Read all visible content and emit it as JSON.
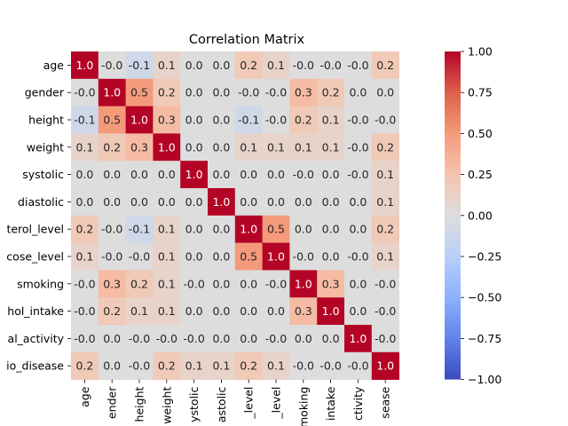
{
  "chart_data": {
    "type": "heatmap",
    "title": "Correlation Matrix",
    "xlabel": "",
    "ylabel": "",
    "row_labels": [
      "age",
      "gender",
      "height",
      "weight",
      "systolic",
      "diastolic",
      "terol_level",
      "cose_level",
      "smoking",
      "hol_intake",
      "al_activity",
      "io_disease"
    ],
    "col_labels": [
      "age",
      "ender",
      "height",
      "weight",
      "ystolic",
      "astolic",
      "_level",
      "_level",
      "moking",
      "intake",
      "ctivity",
      "sease"
    ],
    "values": [
      [
        1.0,
        -0.0,
        -0.1,
        0.1,
        0.0,
        0.0,
        0.2,
        0.1,
        -0.0,
        -0.0,
        -0.0,
        0.2
      ],
      [
        -0.0,
        1.0,
        0.5,
        0.2,
        0.0,
        0.0,
        -0.0,
        -0.0,
        0.3,
        0.2,
        0.0,
        0.0
      ],
      [
        -0.1,
        0.5,
        1.0,
        0.3,
        0.0,
        0.0,
        -0.1,
        -0.0,
        0.2,
        0.1,
        -0.0,
        -0.0
      ],
      [
        0.1,
        0.2,
        0.3,
        1.0,
        0.0,
        0.0,
        0.1,
        0.1,
        0.1,
        0.1,
        -0.0,
        0.2
      ],
      [
        0.0,
        0.0,
        0.0,
        0.0,
        1.0,
        0.0,
        0.0,
        0.0,
        -0.0,
        0.0,
        -0.0,
        0.1
      ],
      [
        0.0,
        0.0,
        0.0,
        0.0,
        0.0,
        1.0,
        0.0,
        0.0,
        0.0,
        0.0,
        0.0,
        0.1
      ],
      [
        0.2,
        -0.0,
        -0.1,
        0.1,
        0.0,
        0.0,
        1.0,
        0.5,
        0.0,
        0.0,
        0.0,
        0.2
      ],
      [
        0.1,
        -0.0,
        -0.0,
        0.1,
        0.0,
        0.0,
        0.5,
        1.0,
        -0.0,
        0.0,
        -0.0,
        0.1
      ],
      [
        -0.0,
        0.3,
        0.2,
        0.1,
        -0.0,
        0.0,
        0.0,
        -0.0,
        1.0,
        0.3,
        0.0,
        -0.0
      ],
      [
        -0.0,
        0.2,
        0.1,
        0.1,
        0.0,
        0.0,
        0.0,
        0.0,
        0.3,
        1.0,
        0.0,
        -0.0
      ],
      [
        -0.0,
        0.0,
        -0.0,
        -0.0,
        -0.0,
        0.0,
        0.0,
        -0.0,
        0.0,
        0.0,
        1.0,
        -0.0
      ],
      [
        0.2,
        0.0,
        -0.0,
        0.2,
        0.1,
        0.1,
        0.2,
        0.1,
        -0.0,
        -0.0,
        -0.0,
        1.0
      ]
    ],
    "vmin": -1.0,
    "vmax": 1.0,
    "colormap": "coolwarm",
    "annotations": true,
    "colorbar_ticks": [
      "1.00",
      "0.75",
      "0.50",
      "0.25",
      "0.00",
      "−0.25",
      "−0.50",
      "−0.75",
      "−1.00"
    ],
    "colorbar_values": [
      1.0,
      0.75,
      0.5,
      0.25,
      0.0,
      -0.25,
      -0.5,
      -0.75,
      -1.0
    ]
  }
}
